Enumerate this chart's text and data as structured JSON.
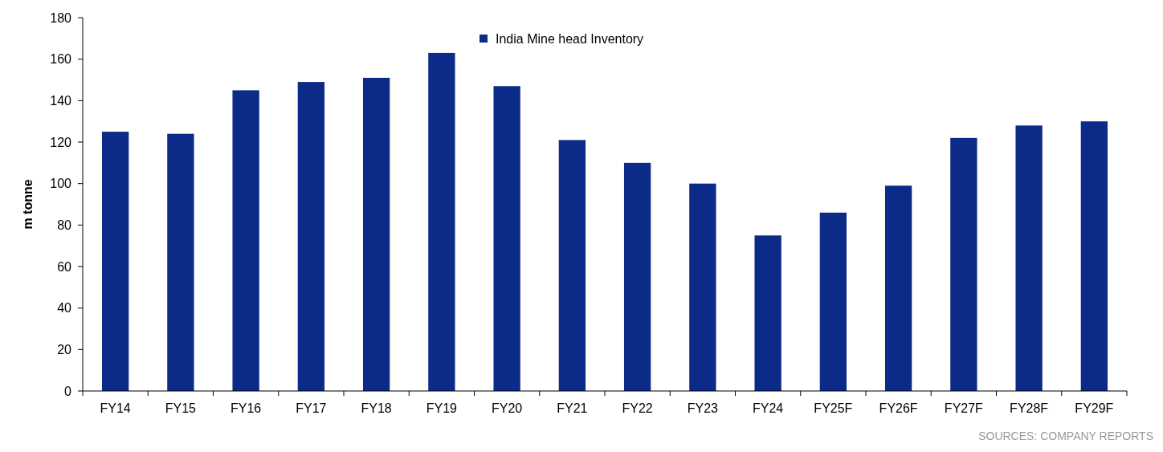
{
  "chart_data": {
    "type": "bar",
    "ylabel": "m tonne",
    "annotations": [
      "SOURCES: COMPANY REPORTS"
    ],
    "categories": [
      "FY14",
      "FY15",
      "FY16",
      "FY17",
      "FY18",
      "FY19",
      "FY20",
      "FY21",
      "FY22",
      "FY23",
      "FY24",
      "FY25F",
      "FY26F",
      "FY27F",
      "FY28F",
      "FY29F"
    ],
    "series": [
      {
        "name": "India Mine head Inventory",
        "color": "#0c2b88",
        "values": [
          125,
          124,
          145,
          149,
          151,
          163,
          147,
          121,
          110,
          100,
          75,
          86,
          99,
          122,
          128,
          130
        ]
      }
    ],
    "ylim": [
      0,
      180
    ],
    "yticks": [
      0,
      20,
      40,
      60,
      80,
      100,
      120,
      140,
      160,
      180
    ],
    "legend": "top"
  }
}
